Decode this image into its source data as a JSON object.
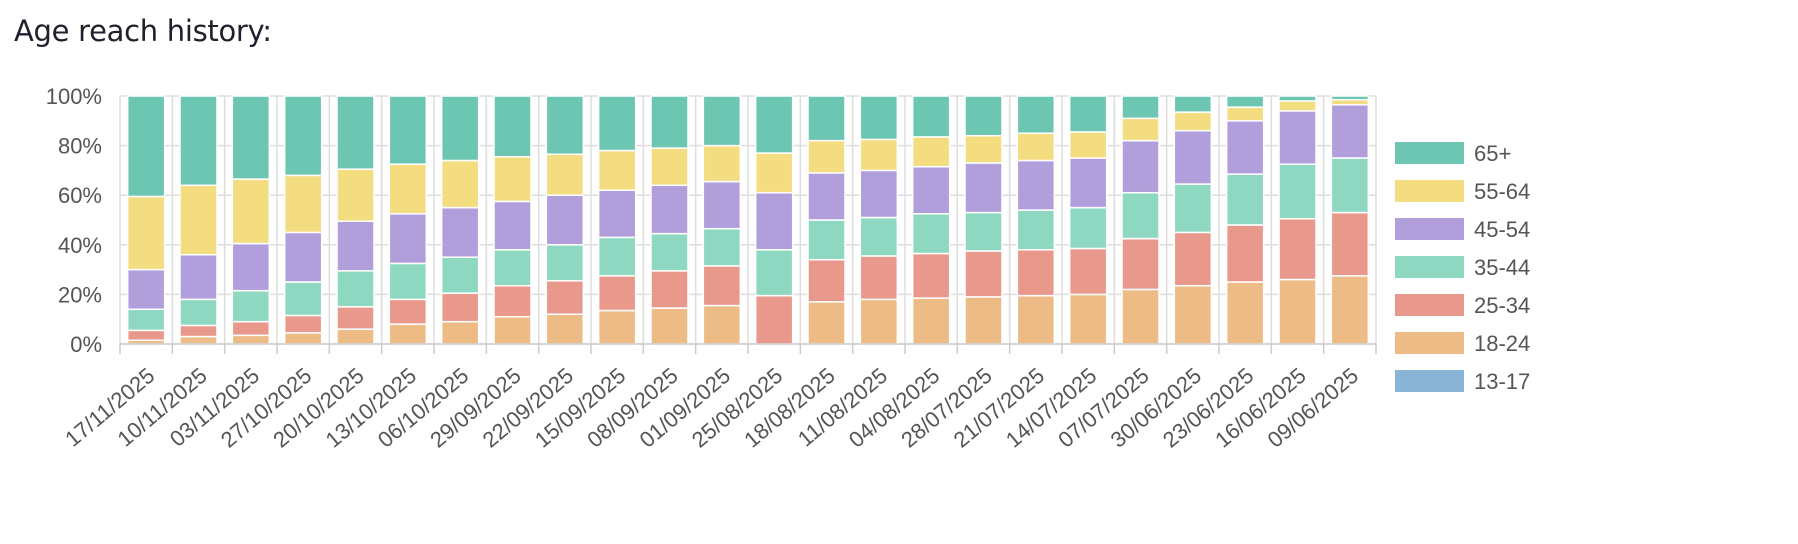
{
  "header": {
    "title": "Age reach history:"
  },
  "chart_data": {
    "type": "bar",
    "stacked": true,
    "normalized": true,
    "ylim": [
      0,
      100
    ],
    "yticks": [
      "0%",
      "20%",
      "40%",
      "60%",
      "80%",
      "100%"
    ],
    "grid": true,
    "legend_position": "right",
    "categories": [
      "17/11/2025",
      "10/11/2025",
      "03/11/2025",
      "27/10/2025",
      "20/10/2025",
      "13/10/2025",
      "06/10/2025",
      "29/09/2025",
      "22/09/2025",
      "15/09/2025",
      "08/09/2025",
      "01/09/2025",
      "25/08/2025",
      "18/08/2025",
      "11/08/2025",
      "04/08/2025",
      "28/07/2025",
      "21/07/2025",
      "14/07/2025",
      "07/07/2025",
      "30/06/2025",
      "23/06/2025",
      "16/06/2025",
      "09/06/2025"
    ],
    "series": [
      {
        "name": "13-17",
        "color": "#8ab4d6",
        "values": [
          0,
          0,
          0,
          0,
          0,
          0,
          0,
          0,
          0,
          0,
          0,
          0,
          0,
          0,
          0,
          0,
          0,
          0,
          0,
          0,
          0,
          0,
          0,
          0
        ]
      },
      {
        "name": "18-24",
        "color": "#edbc86",
        "values": [
          1.5,
          3,
          3.5,
          4.5,
          6,
          8,
          9,
          11,
          12,
          13.5,
          14.5,
          15.5,
          0,
          17,
          18,
          18.5,
          19,
          19.5,
          20,
          22,
          23.5,
          25,
          26,
          27.5
        ]
      },
      {
        "name": "25-34",
        "color": "#e8998b",
        "values": [
          4,
          4.5,
          5.5,
          7,
          9,
          10,
          11.5,
          12.5,
          13.5,
          14,
          15,
          16,
          19.5,
          17,
          17.5,
          18,
          18.5,
          18.5,
          18.5,
          20.5,
          21.5,
          23,
          24.5,
          25.5
        ]
      },
      {
        "name": "35-44",
        "color": "#8ed8c1",
        "values": [
          8.5,
          10.5,
          12.5,
          13.5,
          14.5,
          14.5,
          14.5,
          14.5,
          14.5,
          15.5,
          15,
          15,
          18.5,
          16,
          15.5,
          16,
          15.5,
          16,
          16.5,
          18.5,
          19.5,
          20.5,
          22,
          22
        ]
      },
      {
        "name": "45-54",
        "color": "#b19fdb",
        "values": [
          16,
          18,
          19,
          20,
          20,
          20,
          20,
          19.5,
          20,
          19,
          19.5,
          19,
          23,
          19,
          19,
          19,
          20,
          20,
          20,
          21,
          21.5,
          21.5,
          21.5,
          21.5
        ]
      },
      {
        "name": "55-64",
        "color": "#f4dc80",
        "values": [
          29.5,
          28,
          26,
          23,
          21,
          20,
          19,
          18,
          16.5,
          16,
          15,
          14.5,
          16,
          13,
          12.5,
          12,
          11,
          11,
          10.5,
          9,
          7.5,
          5.5,
          4,
          2
        ]
      },
      {
        "name": "65+",
        "color": "#6dc6b1",
        "values": [
          40.5,
          36,
          33.5,
          32,
          29.5,
          27.5,
          26,
          24.5,
          23.5,
          22,
          21,
          20,
          23,
          18,
          17.5,
          16.5,
          16,
          15,
          14.5,
          9,
          6.5,
          4.5,
          2,
          1.5
        ]
      }
    ]
  }
}
